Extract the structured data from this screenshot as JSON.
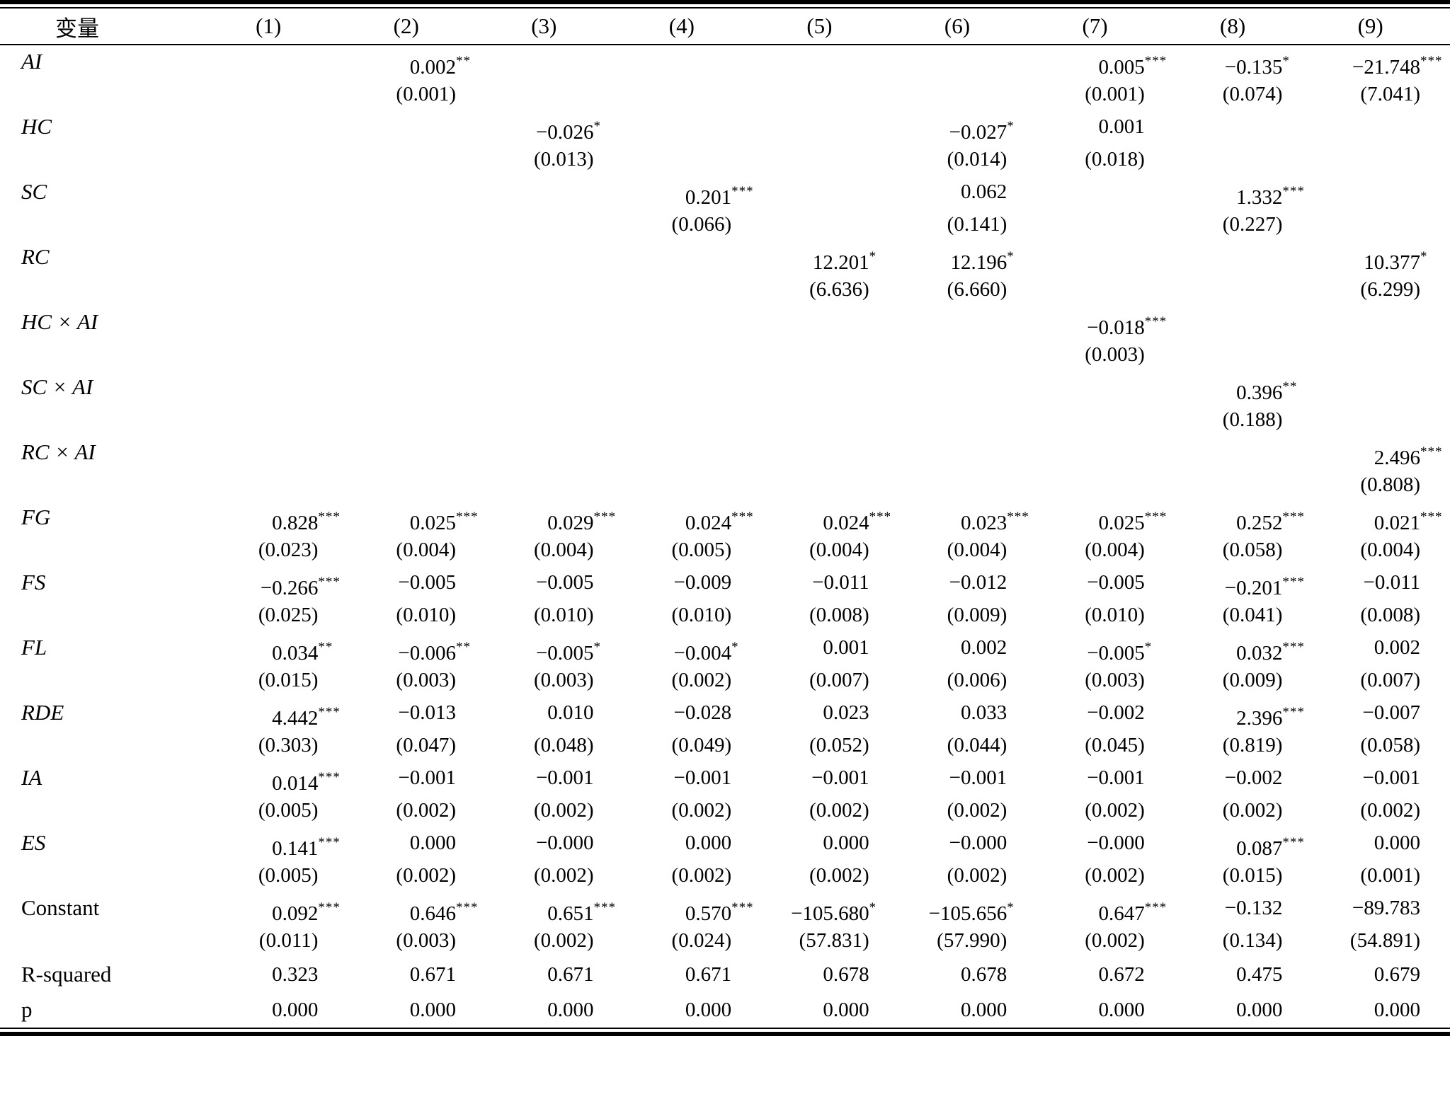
{
  "table": {
    "header": {
      "variable_col": "变量",
      "columns": [
        "(1)",
        "(2)",
        "(3)",
        "(4)",
        "(5)",
        "(6)",
        "(7)",
        "(8)",
        "(9)"
      ]
    },
    "rows": [
      {
        "label": "AI",
        "kind": "coef",
        "cells": [
          null,
          [
            "0.002",
            "**",
            "(0.001)"
          ],
          null,
          null,
          null,
          null,
          [
            "0.005",
            "***",
            "(0.001)"
          ],
          [
            "−0.135",
            "*",
            "(0.074)"
          ],
          [
            "−21.748",
            "***",
            "(7.041)"
          ]
        ]
      },
      {
        "label": "HC",
        "kind": "coef",
        "cells": [
          null,
          null,
          [
            "−0.026",
            "*",
            "(0.013)"
          ],
          null,
          null,
          [
            "−0.027",
            "*",
            "(0.014)"
          ],
          [
            "0.001",
            "",
            "(0.018)"
          ],
          null,
          null
        ]
      },
      {
        "label": "SC",
        "kind": "coef",
        "cells": [
          null,
          null,
          null,
          [
            "0.201",
            "***",
            "(0.066)"
          ],
          null,
          [
            "0.062",
            "",
            "(0.141)"
          ],
          null,
          [
            "1.332",
            "***",
            "(0.227)"
          ],
          null
        ]
      },
      {
        "label": "RC",
        "kind": "coef",
        "cells": [
          null,
          null,
          null,
          null,
          [
            "12.201",
            "*",
            "(6.636)"
          ],
          [
            "12.196",
            "*",
            "(6.660)"
          ],
          null,
          null,
          [
            "10.377",
            "*",
            "(6.299)"
          ]
        ]
      },
      {
        "label": "HC × AI",
        "kind": "coef",
        "cells": [
          null,
          null,
          null,
          null,
          null,
          null,
          [
            "−0.018",
            "***",
            "(0.003)"
          ],
          null,
          null
        ]
      },
      {
        "label": "SC × AI",
        "kind": "coef",
        "cells": [
          null,
          null,
          null,
          null,
          null,
          null,
          null,
          [
            "0.396",
            "**",
            "(0.188)"
          ],
          null
        ]
      },
      {
        "label": "RC × AI",
        "kind": "coef",
        "cells": [
          null,
          null,
          null,
          null,
          null,
          null,
          null,
          null,
          [
            "2.496",
            "***",
            "(0.808)"
          ]
        ]
      },
      {
        "label": "FG",
        "kind": "coef",
        "cells": [
          [
            "0.828",
            "***",
            "(0.023)"
          ],
          [
            "0.025",
            "***",
            "(0.004)"
          ],
          [
            "0.029",
            "***",
            "(0.004)"
          ],
          [
            "0.024",
            "***",
            "(0.005)"
          ],
          [
            "0.024",
            "***",
            "(0.004)"
          ],
          [
            "0.023",
            "***",
            "(0.004)"
          ],
          [
            "0.025",
            "***",
            "(0.004)"
          ],
          [
            "0.252",
            "***",
            "(0.058)"
          ],
          [
            "0.021",
            "***",
            "(0.004)"
          ]
        ]
      },
      {
        "label": "FS",
        "kind": "coef",
        "cells": [
          [
            "−0.266",
            "***",
            "(0.025)"
          ],
          [
            "−0.005",
            "",
            "(0.010)"
          ],
          [
            "−0.005",
            "",
            "(0.010)"
          ],
          [
            "−0.009",
            "",
            "(0.010)"
          ],
          [
            "−0.011",
            "",
            "(0.008)"
          ],
          [
            "−0.012",
            "",
            "(0.009)"
          ],
          [
            "−0.005",
            "",
            "(0.010)"
          ],
          [
            "−0.201",
            "***",
            "(0.041)"
          ],
          [
            "−0.011",
            "",
            "(0.008)"
          ]
        ]
      },
      {
        "label": "FL",
        "kind": "coef",
        "cells": [
          [
            "0.034",
            "**",
            "(0.015)"
          ],
          [
            "−0.006",
            "**",
            "(0.003)"
          ],
          [
            "−0.005",
            "*",
            "(0.003)"
          ],
          [
            "−0.004",
            "*",
            "(0.002)"
          ],
          [
            "0.001",
            "",
            "(0.007)"
          ],
          [
            "0.002",
            "",
            "(0.006)"
          ],
          [
            "−0.005",
            "*",
            "(0.003)"
          ],
          [
            "0.032",
            "***",
            "(0.009)"
          ],
          [
            "0.002",
            "",
            "(0.007)"
          ]
        ]
      },
      {
        "label": "RDE",
        "kind": "coef",
        "cells": [
          [
            "4.442",
            "***",
            "(0.303)"
          ],
          [
            "−0.013",
            "",
            "(0.047)"
          ],
          [
            "0.010",
            "",
            "(0.048)"
          ],
          [
            "−0.028",
            "",
            "(0.049)"
          ],
          [
            "0.023",
            "",
            "(0.052)"
          ],
          [
            "0.033",
            "",
            "(0.044)"
          ],
          [
            "−0.002",
            "",
            "(0.045)"
          ],
          [
            "2.396",
            "***",
            "(0.819)"
          ],
          [
            "−0.007",
            "",
            "(0.058)"
          ]
        ]
      },
      {
        "label": "IA",
        "kind": "coef",
        "cells": [
          [
            "0.014",
            "***",
            "(0.005)"
          ],
          [
            "−0.001",
            "",
            "(0.002)"
          ],
          [
            "−0.001",
            "",
            "(0.002)"
          ],
          [
            "−0.001",
            "",
            "(0.002)"
          ],
          [
            "−0.001",
            "",
            "(0.002)"
          ],
          [
            "−0.001",
            "",
            "(0.002)"
          ],
          [
            "−0.001",
            "",
            "(0.002)"
          ],
          [
            "−0.002",
            "",
            "(0.002)"
          ],
          [
            "−0.001",
            "",
            "(0.002)"
          ]
        ]
      },
      {
        "label": "ES",
        "kind": "coef",
        "cells": [
          [
            "0.141",
            "***",
            "(0.005)"
          ],
          [
            "0.000",
            "",
            "(0.002)"
          ],
          [
            "−0.000",
            "",
            "(0.002)"
          ],
          [
            "0.000",
            "",
            "(0.002)"
          ],
          [
            "0.000",
            "",
            "(0.002)"
          ],
          [
            "−0.000",
            "",
            "(0.002)"
          ],
          [
            "−0.000",
            "",
            "(0.002)"
          ],
          [
            "0.087",
            "***",
            "(0.015)"
          ],
          [
            "0.000",
            "",
            "(0.001)"
          ]
        ]
      },
      {
        "label": "Constant",
        "kind": "coef",
        "upright": true,
        "cells": [
          [
            "0.092",
            "***",
            "(0.011)"
          ],
          [
            "0.646",
            "***",
            "(0.003)"
          ],
          [
            "0.651",
            "***",
            "(0.002)"
          ],
          [
            "0.570",
            "***",
            "(0.024)"
          ],
          [
            "−105.680",
            "*",
            "(57.831)"
          ],
          [
            "−105.656",
            "*",
            "(57.990)"
          ],
          [
            "0.647",
            "***",
            "(0.002)"
          ],
          [
            "−0.132",
            "",
            "(0.134)"
          ],
          [
            "−89.783",
            "",
            "(54.891)"
          ]
        ]
      },
      {
        "label": "R-squared",
        "kind": "stat",
        "upright": true,
        "cells": [
          "0.323",
          "0.671",
          "0.671",
          "0.671",
          "0.678",
          "0.678",
          "0.672",
          "0.475",
          "0.679"
        ]
      },
      {
        "label": "p",
        "kind": "stat",
        "upright": true,
        "cells": [
          "0.000",
          "0.000",
          "0.000",
          "0.000",
          "0.000",
          "0.000",
          "0.000",
          "0.000",
          "0.000"
        ]
      }
    ]
  }
}
